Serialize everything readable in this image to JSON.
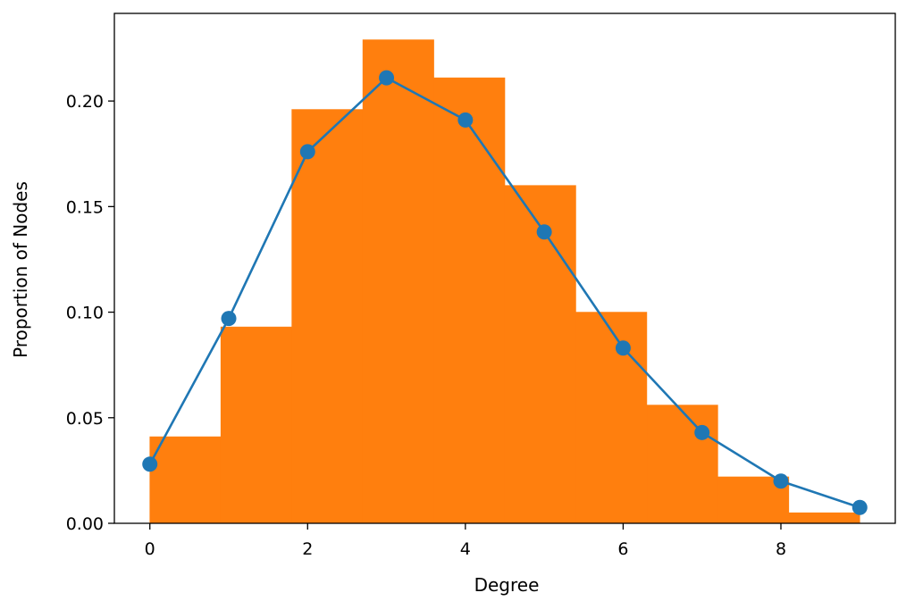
{
  "chart_data": {
    "type": "bar",
    "xlabel": "Degree",
    "ylabel": "Proportion of Nodes",
    "xlim": [
      -0.45,
      9.45
    ],
    "ylim": [
      0.0,
      0.2415
    ],
    "grid": false,
    "xticks": [
      0,
      2,
      4,
      6,
      8
    ],
    "yticks": [
      0.0,
      0.05,
      0.1,
      0.15,
      0.2
    ],
    "xtick_labels": [
      "0",
      "2",
      "4",
      "6",
      "8"
    ],
    "ytick_labels": [
      "0.00",
      "0.05",
      "0.10",
      "0.15",
      "0.20"
    ],
    "histogram": {
      "color": "#ff7f0e",
      "bins": [
        {
          "x0": 0.0,
          "x1": 0.9,
          "value": 0.041
        },
        {
          "x0": 0.9,
          "x1": 1.8,
          "value": 0.093
        },
        {
          "x0": 1.8,
          "x1": 2.7,
          "value": 0.196
        },
        {
          "x0": 2.7,
          "x1": 3.6,
          "value": 0.229
        },
        {
          "x0": 3.6,
          "x1": 4.5,
          "value": 0.211
        },
        {
          "x0": 4.5,
          "x1": 5.4,
          "value": 0.16
        },
        {
          "x0": 5.4,
          "x1": 6.3,
          "value": 0.1
        },
        {
          "x0": 6.3,
          "x1": 7.2,
          "value": 0.056
        },
        {
          "x0": 7.2,
          "x1": 8.1,
          "value": 0.022
        },
        {
          "x0": 8.1,
          "x1": 9.0,
          "value": 0.005
        }
      ]
    },
    "line": {
      "color": "#1f77b4",
      "marker": "circle",
      "x": [
        0,
        1,
        2,
        3,
        4,
        5,
        6,
        7,
        8,
        9
      ],
      "y": [
        0.028,
        0.097,
        0.176,
        0.211,
        0.191,
        0.138,
        0.083,
        0.043,
        0.02,
        0.0075
      ]
    }
  }
}
